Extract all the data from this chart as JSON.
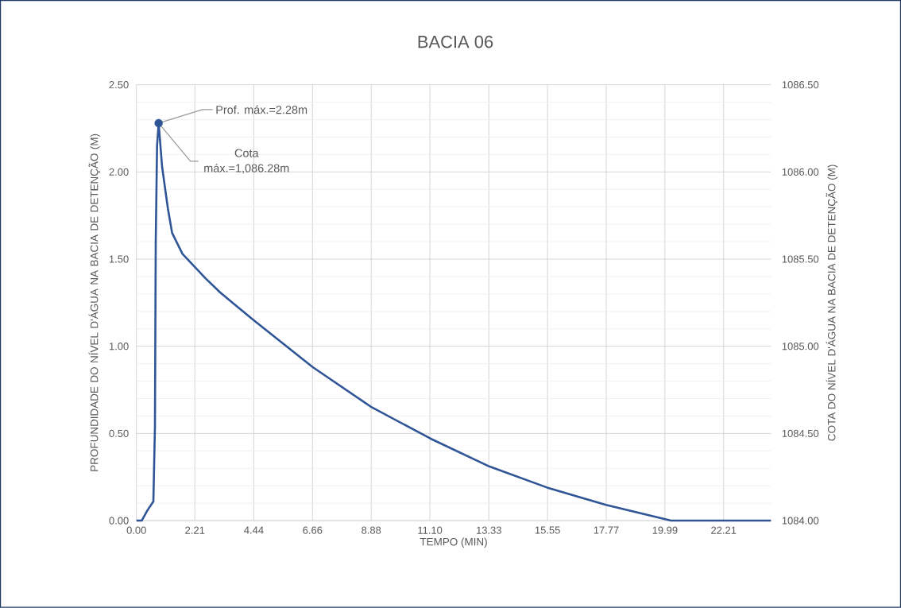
{
  "chart_data": {
    "type": "line",
    "title": "BACIA 06",
    "xlabel": "TEMPO (MIN)",
    "ylabel": "PROFUNDIDADE DO NÍVEL D'ÁGUA NA BACIA DE DETENÇÃO (M)",
    "y2label": "COTA DO NÍVEL D'ÁGUA NA BACIA DE DETENÇÃO (M)",
    "series": [
      {
        "color": "#2f5597",
        "x": [
          0,
          0.2,
          0.42,
          0.64,
          0.7,
          0.73,
          0.78,
          0.84,
          0.97,
          1.19,
          1.35,
          1.74,
          2.61,
          3.16,
          3.71,
          4.43,
          6.67,
          8.9,
          11.13,
          13.36,
          15.53,
          17.76,
          20.22,
          24.0
        ],
        "values": [
          0,
          0,
          0.06,
          0.11,
          0.54,
          1.6,
          2.15,
          2.28,
          2.03,
          1.79,
          1.65,
          1.53,
          1.39,
          1.31,
          1.24,
          1.15,
          0.88,
          0.65,
          0.47,
          0.31,
          0.19,
          0.09,
          0,
          0
        ]
      },
      {
        "type": "scatter",
        "color": "#2f5597",
        "x": [
          0.84
        ],
        "values": [
          2.28
        ]
      }
    ],
    "annotations": [
      {
        "text": "Prof. máx.=2.28m",
        "x": 0.84,
        "y": 2.28
      },
      {
        "text": "Cota máx.=1,086.28m",
        "x": 0.84,
        "y": 2.28
      }
    ],
    "xlim": [
      0,
      24.0
    ],
    "ylim": [
      0,
      2.5
    ],
    "y2lim": [
      1084,
      1086.5
    ],
    "xticks": [
      {
        "value": 0,
        "label": "0.00"
      },
      2.21,
      4.44,
      6.66,
      8.88,
      {
        "value": 11.1,
        "label": "11.10"
      },
      13.33,
      15.55,
      17.77,
      19.99,
      22.21
    ],
    "yticks": [
      {
        "value": 0,
        "label": "0.00"
      },
      {
        "value": 0.5,
        "label": "0.50"
      },
      {
        "value": 1,
        "label": "1.00"
      },
      {
        "value": 1.5,
        "label": "1.50"
      },
      {
        "value": 2,
        "label": "2.00"
      },
      {
        "value": 2.5,
        "label": "2.50"
      }
    ],
    "y2ticks": [
      {
        "value": 1084,
        "label": "1084.00"
      },
      {
        "value": 1084.5,
        "label": "1084.50"
      },
      {
        "value": 1085,
        "label": "1085.00"
      },
      {
        "value": 1085.5,
        "label": "1085.50"
      },
      {
        "value": 1086,
        "label": "1086.00"
      },
      {
        "value": 1086.5,
        "label": "1086.50"
      }
    ],
    "grid": true
  }
}
